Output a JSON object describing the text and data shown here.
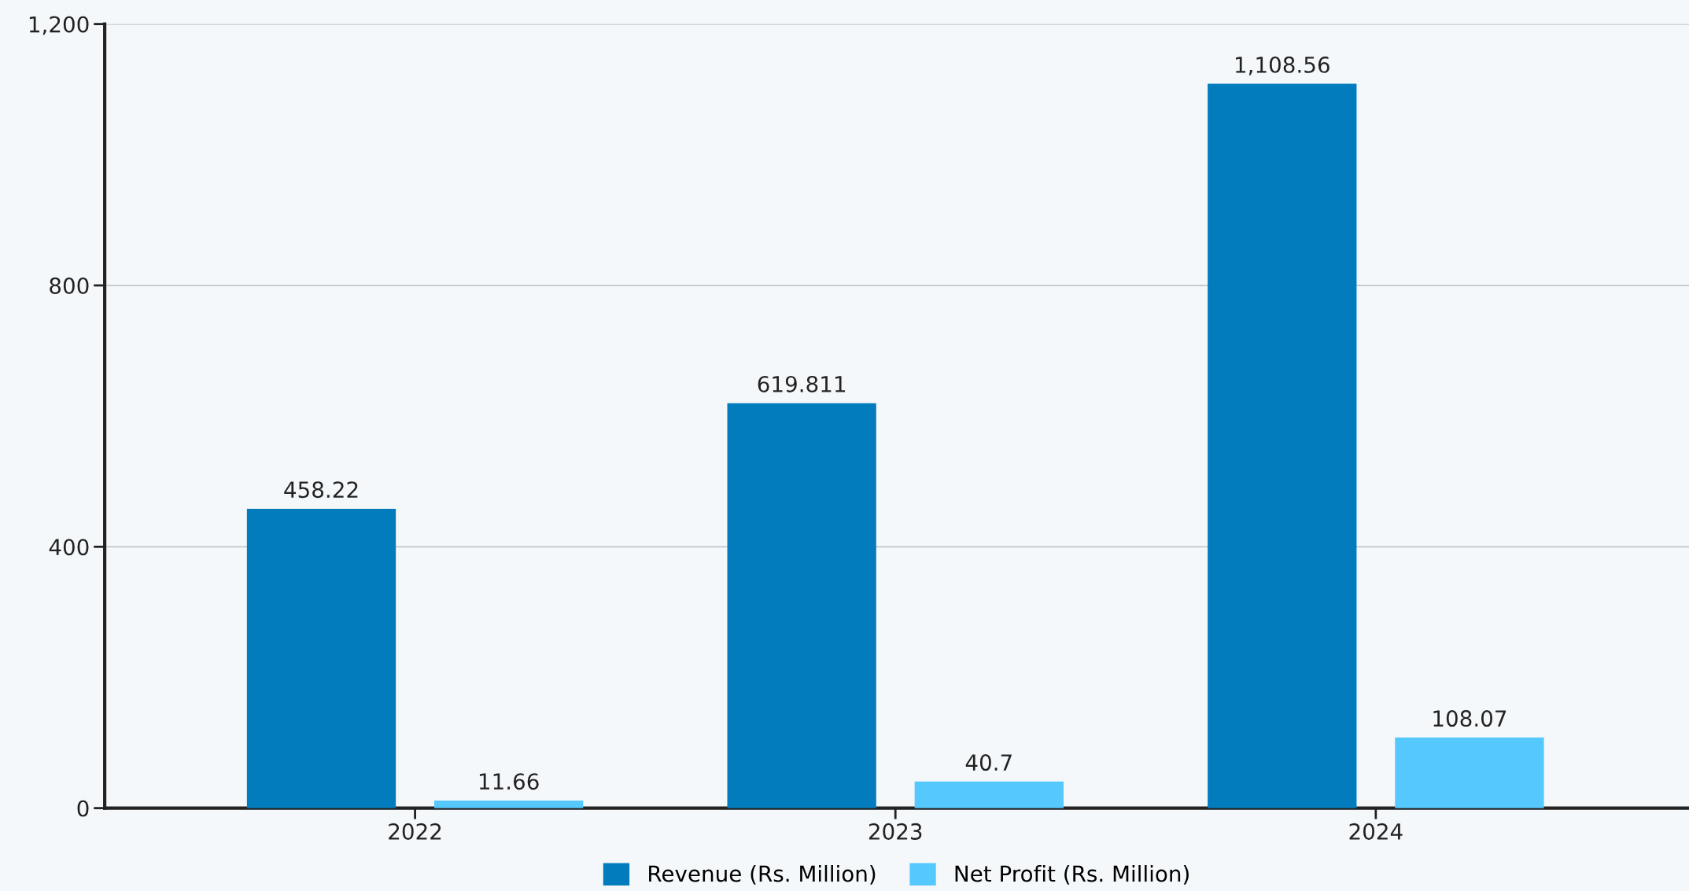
{
  "chart_data": {
    "type": "bar",
    "categories": [
      "2022",
      "2023",
      "2024"
    ],
    "series": [
      {
        "name": "Revenue (Rs. Million)",
        "color": "#027cbd",
        "values": [
          458.22,
          619.811,
          1108.56
        ],
        "value_labels": [
          "458.22",
          "619.811",
          "1,108.56"
        ]
      },
      {
        "name": "Net Profit (Rs. Million)",
        "color": "#55c8fe",
        "values": [
          11.66,
          40.7,
          108.07
        ],
        "value_labels": [
          "11.66",
          "40.7",
          "108.07"
        ]
      }
    ],
    "ylim": [
      0,
      1200
    ],
    "yticks": [
      0,
      400,
      800,
      {
        "value": 1200,
        "label": "1,200"
      }
    ],
    "grid": "y",
    "legend": "bottom"
  }
}
